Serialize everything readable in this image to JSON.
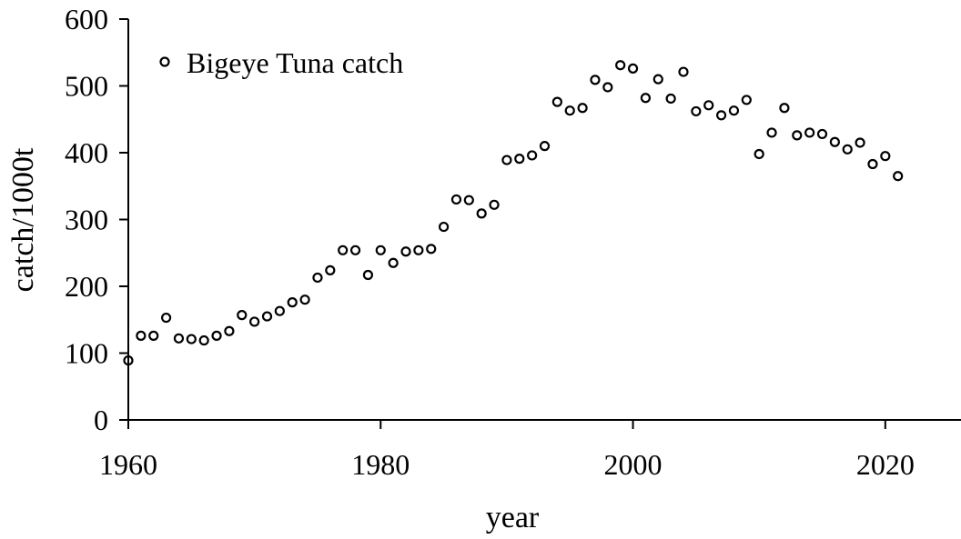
{
  "chart_data": {
    "type": "scatter",
    "xlabel": "year",
    "ylabel": "catch/1000t",
    "xlim": [
      1960,
      2026
    ],
    "ylim": [
      0,
      600
    ],
    "xticks": [
      1960,
      1980,
      2000,
      2020
    ],
    "yticks": [
      0,
      100,
      200,
      300,
      400,
      500,
      600
    ],
    "grid": false,
    "legend_position": "top-left",
    "series": [
      {
        "name": "Bigeye Tuna catch",
        "marker": "open-circle",
        "color": "#000000",
        "x": [
          1960,
          1961,
          1962,
          1963,
          1964,
          1965,
          1966,
          1967,
          1968,
          1969,
          1970,
          1971,
          1972,
          1973,
          1974,
          1975,
          1976,
          1977,
          1978,
          1979,
          1980,
          1981,
          1982,
          1983,
          1984,
          1985,
          1986,
          1987,
          1988,
          1989,
          1990,
          1991,
          1992,
          1993,
          1994,
          1995,
          1996,
          1997,
          1998,
          1999,
          2000,
          2001,
          2002,
          2003,
          2004,
          2005,
          2006,
          2007,
          2008,
          2009,
          2010,
          2011,
          2012,
          2013,
          2014,
          2015,
          2016,
          2017,
          2018,
          2019,
          2020,
          2021
        ],
        "y": [
          89,
          126,
          126,
          153,
          122,
          121,
          119,
          126,
          133,
          157,
          147,
          155,
          163,
          176,
          180,
          213,
          224,
          254,
          254,
          217,
          254,
          235,
          252,
          254,
          256,
          289,
          330,
          329,
          309,
          322,
          389,
          391,
          396,
          410,
          476,
          463,
          467,
          509,
          498,
          531,
          526,
          482,
          510,
          481,
          521,
          462,
          471,
          456,
          463,
          479,
          398,
          430,
          467,
          426,
          430,
          428,
          416,
          405,
          415,
          383,
          395,
          365
        ]
      }
    ]
  }
}
